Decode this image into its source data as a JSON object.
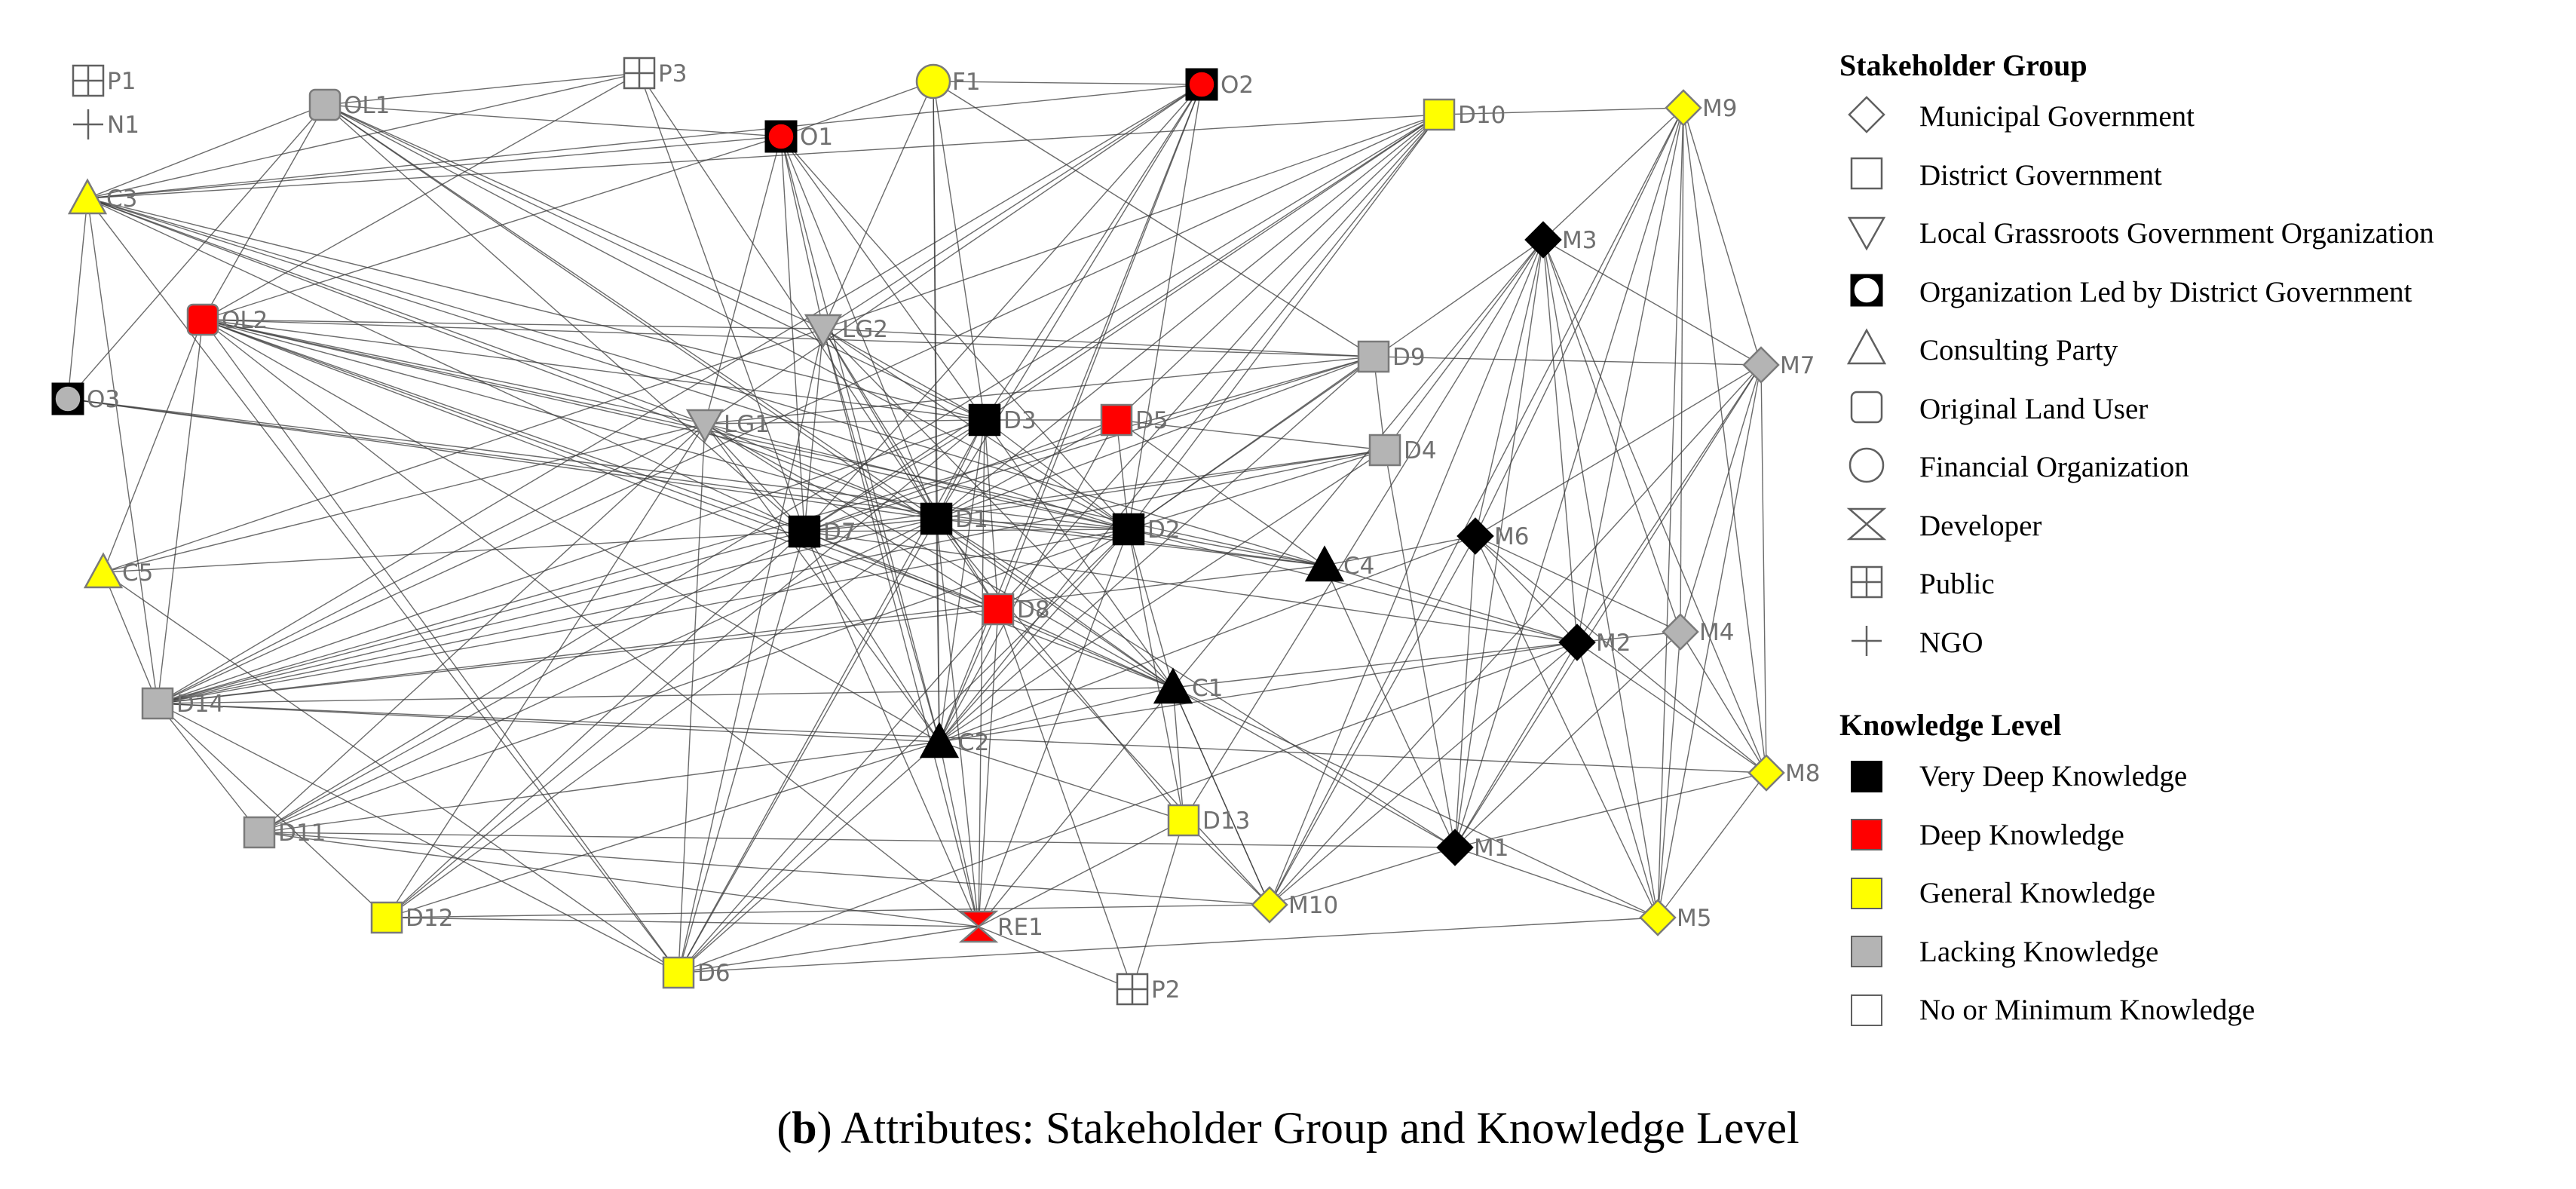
{
  "diagram": {
    "nodes": [
      {
        "id": "P1",
        "shape": "public",
        "knowledge": "none"
      },
      {
        "id": "N1",
        "shape": "ngo",
        "knowledge": "none"
      },
      {
        "id": "OL1",
        "shape": "original",
        "knowledge": "lacking"
      },
      {
        "id": "P3",
        "shape": "public",
        "knowledge": "none"
      },
      {
        "id": "F1",
        "shape": "financial",
        "knowledge": "general"
      },
      {
        "id": "O2",
        "shape": "org",
        "knowledge": "deep"
      },
      {
        "id": "D10",
        "shape": "district",
        "knowledge": "general"
      },
      {
        "id": "M9",
        "shape": "municipal",
        "knowledge": "general"
      },
      {
        "id": "O1",
        "shape": "org",
        "knowledge": "deep"
      },
      {
        "id": "C3",
        "shape": "consulting",
        "knowledge": "general"
      },
      {
        "id": "M3",
        "shape": "municipal",
        "knowledge": "very_deep"
      },
      {
        "id": "OL2",
        "shape": "original",
        "knowledge": "deep"
      },
      {
        "id": "LG2",
        "shape": "grassroots",
        "knowledge": "lacking"
      },
      {
        "id": "D9",
        "shape": "district",
        "knowledge": "lacking"
      },
      {
        "id": "M7",
        "shape": "municipal",
        "knowledge": "lacking"
      },
      {
        "id": "O3",
        "shape": "org",
        "knowledge": "lacking"
      },
      {
        "id": "LG1",
        "shape": "grassroots",
        "knowledge": "lacking"
      },
      {
        "id": "D3",
        "shape": "district",
        "knowledge": "very_deep"
      },
      {
        "id": "D5",
        "shape": "district",
        "knowledge": "deep"
      },
      {
        "id": "D4",
        "shape": "district",
        "knowledge": "lacking"
      },
      {
        "id": "D7",
        "shape": "district",
        "knowledge": "very_deep"
      },
      {
        "id": "D1",
        "shape": "district",
        "knowledge": "very_deep"
      },
      {
        "id": "D2",
        "shape": "district",
        "knowledge": "very_deep"
      },
      {
        "id": "M6",
        "shape": "municipal",
        "knowledge": "very_deep"
      },
      {
        "id": "C4",
        "shape": "consulting",
        "knowledge": "very_deep"
      },
      {
        "id": "C5",
        "shape": "consulting",
        "knowledge": "general"
      },
      {
        "id": "D8",
        "shape": "district",
        "knowledge": "deep"
      },
      {
        "id": "M2",
        "shape": "municipal",
        "knowledge": "very_deep"
      },
      {
        "id": "M4",
        "shape": "municipal",
        "knowledge": "lacking"
      },
      {
        "id": "D14",
        "shape": "district",
        "knowledge": "lacking"
      },
      {
        "id": "C1",
        "shape": "consulting",
        "knowledge": "very_deep"
      },
      {
        "id": "C2",
        "shape": "consulting",
        "knowledge": "very_deep"
      },
      {
        "id": "M8",
        "shape": "municipal",
        "knowledge": "general"
      },
      {
        "id": "D13",
        "shape": "district",
        "knowledge": "general"
      },
      {
        "id": "D11",
        "shape": "district",
        "knowledge": "lacking"
      },
      {
        "id": "M1",
        "shape": "municipal",
        "knowledge": "very_deep"
      },
      {
        "id": "M10",
        "shape": "municipal",
        "knowledge": "general"
      },
      {
        "id": "D12",
        "shape": "district",
        "knowledge": "general"
      },
      {
        "id": "RE1",
        "shape": "developer",
        "knowledge": "deep"
      },
      {
        "id": "M5",
        "shape": "municipal",
        "knowledge": "general"
      },
      {
        "id": "D6",
        "shape": "district",
        "knowledge": "general"
      },
      {
        "id": "P2",
        "shape": "public",
        "knowledge": "none"
      }
    ],
    "edges": [
      [
        "OL1",
        "O1"
      ],
      [
        "OL1",
        "P3"
      ],
      [
        "OL1",
        "D1"
      ],
      [
        "OL1",
        "D3"
      ],
      [
        "OL1",
        "D7"
      ],
      [
        "OL1",
        "D2"
      ],
      [
        "OL1",
        "LG2"
      ],
      [
        "OL1",
        "C3"
      ],
      [
        "OL1",
        "OL2"
      ],
      [
        "OL1",
        "C1"
      ],
      [
        "P3",
        "C3"
      ],
      [
        "P3",
        "D1"
      ],
      [
        "P3",
        "D7"
      ],
      [
        "P3",
        "OL2"
      ],
      [
        "O1",
        "C3"
      ],
      [
        "O1",
        "D3"
      ],
      [
        "O1",
        "D7"
      ],
      [
        "O1",
        "D1"
      ],
      [
        "O1",
        "LG1"
      ],
      [
        "O1",
        "LG2"
      ],
      [
        "O1",
        "D2"
      ],
      [
        "O1",
        "C2"
      ],
      [
        "O1",
        "OL2"
      ],
      [
        "F1",
        "O1"
      ],
      [
        "F1",
        "O2"
      ],
      [
        "F1",
        "D1"
      ],
      [
        "F1",
        "C2"
      ],
      [
        "F1",
        "D3"
      ],
      [
        "F1",
        "LG2"
      ],
      [
        "F1",
        "D9"
      ],
      [
        "O2",
        "LG2"
      ],
      [
        "O2",
        "D7"
      ],
      [
        "O2",
        "D1"
      ],
      [
        "O2",
        "D3"
      ],
      [
        "O2",
        "C2"
      ],
      [
        "O2",
        "LG1"
      ],
      [
        "O2",
        "D2"
      ],
      [
        "O2",
        "C3"
      ],
      [
        "O2",
        "D14"
      ],
      [
        "O2",
        "D8"
      ],
      [
        "D10",
        "M9"
      ],
      [
        "D10",
        "D3"
      ],
      [
        "D10",
        "D7"
      ],
      [
        "D10",
        "D1"
      ],
      [
        "D10",
        "LG2"
      ],
      [
        "D10",
        "C2"
      ],
      [
        "D10",
        "D14"
      ],
      [
        "D10",
        "D8"
      ],
      [
        "D10",
        "D5"
      ],
      [
        "D10",
        "D2"
      ],
      [
        "D10",
        "C3"
      ],
      [
        "D10",
        "D11"
      ],
      [
        "M9",
        "M3"
      ],
      [
        "M9",
        "M7"
      ],
      [
        "M9",
        "M2"
      ],
      [
        "M9",
        "M1"
      ],
      [
        "M9",
        "M4"
      ],
      [
        "M9",
        "M8"
      ],
      [
        "M9",
        "M6"
      ],
      [
        "M9",
        "M10"
      ],
      [
        "M9",
        "M5"
      ],
      [
        "M3",
        "M7"
      ],
      [
        "M3",
        "M2"
      ],
      [
        "M3",
        "M1"
      ],
      [
        "M3",
        "M4"
      ],
      [
        "M3",
        "M8"
      ],
      [
        "M3",
        "M6"
      ],
      [
        "M3",
        "D2"
      ],
      [
        "M3",
        "C1"
      ],
      [
        "M3",
        "M10"
      ],
      [
        "M3",
        "M5"
      ],
      [
        "M3",
        "D4"
      ],
      [
        "M3",
        "D13"
      ],
      [
        "M7",
        "M2"
      ],
      [
        "M7",
        "M1"
      ],
      [
        "M7",
        "M4"
      ],
      [
        "M7",
        "M8"
      ],
      [
        "M7",
        "M6"
      ],
      [
        "M7",
        "M10"
      ],
      [
        "M7",
        "M5"
      ],
      [
        "M7",
        "D9"
      ],
      [
        "C3",
        "O3"
      ],
      [
        "C3",
        "D3"
      ],
      [
        "C3",
        "D7"
      ],
      [
        "C3",
        "D1"
      ],
      [
        "C3",
        "D2"
      ],
      [
        "C3",
        "C4"
      ],
      [
        "C3",
        "LG1"
      ],
      [
        "OL2",
        "D1"
      ],
      [
        "OL2",
        "D3"
      ],
      [
        "OL2",
        "D2"
      ],
      [
        "OL2",
        "D7"
      ],
      [
        "OL2",
        "LG1"
      ],
      [
        "OL2",
        "LG2"
      ],
      [
        "OL2",
        "D8"
      ],
      [
        "OL2",
        "C1"
      ],
      [
        "OL2",
        "C2"
      ],
      [
        "OL2",
        "D14"
      ],
      [
        "OL2",
        "C5"
      ],
      [
        "OL2",
        "D6"
      ],
      [
        "OL2",
        "C4"
      ],
      [
        "OL2",
        "RE1"
      ],
      [
        "OL2",
        "D9"
      ],
      [
        "O3",
        "OL1"
      ],
      [
        "O3",
        "D1"
      ],
      [
        "O3",
        "D2"
      ],
      [
        "O3",
        "C4"
      ],
      [
        "LG2",
        "D3"
      ],
      [
        "LG2",
        "D7"
      ],
      [
        "LG2",
        "D1"
      ],
      [
        "LG2",
        "D2"
      ],
      [
        "LG2",
        "D8"
      ],
      [
        "LG2",
        "C2"
      ],
      [
        "LG2",
        "C1"
      ],
      [
        "LG2",
        "D6"
      ],
      [
        "LG2",
        "D9"
      ],
      [
        "LG2",
        "C5"
      ],
      [
        "LG2",
        "RE1"
      ],
      [
        "LG1",
        "D3"
      ],
      [
        "LG1",
        "D7"
      ],
      [
        "LG1",
        "D1"
      ],
      [
        "LG1",
        "D2"
      ],
      [
        "LG1",
        "D8"
      ],
      [
        "LG1",
        "C2"
      ],
      [
        "LG1",
        "D6"
      ],
      [
        "LG1",
        "D12"
      ],
      [
        "LG1",
        "D14"
      ],
      [
        "LG1",
        "C5"
      ],
      [
        "LG1",
        "D9"
      ],
      [
        "LG1",
        "D11"
      ],
      [
        "LG1",
        "C1"
      ],
      [
        "D3",
        "D7"
      ],
      [
        "D3",
        "D1"
      ],
      [
        "D3",
        "D2"
      ],
      [
        "D3",
        "D5"
      ],
      [
        "D3",
        "D8"
      ],
      [
        "D3",
        "C2"
      ],
      [
        "D3",
        "C1"
      ],
      [
        "D3",
        "D14"
      ],
      [
        "D3",
        "D6"
      ],
      [
        "D3",
        "RE1"
      ],
      [
        "D3",
        "D12"
      ],
      [
        "D5",
        "D1"
      ],
      [
        "D5",
        "D2"
      ],
      [
        "D5",
        "D7"
      ],
      [
        "D5",
        "C2"
      ],
      [
        "D5",
        "D4"
      ],
      [
        "D5",
        "C4"
      ],
      [
        "D9",
        "D7"
      ],
      [
        "D9",
        "D1"
      ],
      [
        "D9",
        "D2"
      ],
      [
        "D9",
        "C2"
      ],
      [
        "D9",
        "D4"
      ],
      [
        "D9",
        "D14"
      ],
      [
        "D4",
        "D7"
      ],
      [
        "D4",
        "D1"
      ],
      [
        "D4",
        "D2"
      ],
      [
        "D4",
        "C2"
      ],
      [
        "D4",
        "M1"
      ],
      [
        "D4",
        "D14"
      ],
      [
        "D7",
        "D1"
      ],
      [
        "D7",
        "D2"
      ],
      [
        "D7",
        "D8"
      ],
      [
        "D7",
        "C1"
      ],
      [
        "D7",
        "C2"
      ],
      [
        "D7",
        "D14"
      ],
      [
        "D7",
        "D11"
      ],
      [
        "D7",
        "D6"
      ],
      [
        "D7",
        "RE1"
      ],
      [
        "D7",
        "D12"
      ],
      [
        "D7",
        "C5"
      ],
      [
        "D7",
        "M2"
      ],
      [
        "D1",
        "D2"
      ],
      [
        "D1",
        "D8"
      ],
      [
        "D1",
        "C1"
      ],
      [
        "D1",
        "C2"
      ],
      [
        "D1",
        "C4"
      ],
      [
        "D1",
        "D14"
      ],
      [
        "D1",
        "D11"
      ],
      [
        "D1",
        "D6"
      ],
      [
        "D1",
        "RE1"
      ],
      [
        "D1",
        "D13"
      ],
      [
        "D1",
        "D12"
      ],
      [
        "D1",
        "M1"
      ],
      [
        "D2",
        "C4"
      ],
      [
        "D2",
        "C1"
      ],
      [
        "D2",
        "C2"
      ],
      [
        "D2",
        "D8"
      ],
      [
        "D2",
        "D14"
      ],
      [
        "D2",
        "D6"
      ],
      [
        "D2",
        "RE1"
      ],
      [
        "D2",
        "D13"
      ],
      [
        "D2",
        "M2"
      ],
      [
        "D2",
        "D11"
      ],
      [
        "C4",
        "M2"
      ],
      [
        "C4",
        "M6"
      ],
      [
        "C4",
        "D14"
      ],
      [
        "C4",
        "M1"
      ],
      [
        "D8",
        "C2"
      ],
      [
        "D8",
        "C1"
      ],
      [
        "D8",
        "RE1"
      ],
      [
        "D8",
        "D14"
      ],
      [
        "D8",
        "D6"
      ],
      [
        "M6",
        "M2"
      ],
      [
        "M6",
        "M1"
      ],
      [
        "M6",
        "M4"
      ],
      [
        "M6",
        "M8"
      ],
      [
        "M6",
        "C2"
      ],
      [
        "M6",
        "M10"
      ],
      [
        "M6",
        "M5"
      ],
      [
        "M2",
        "M1"
      ],
      [
        "M2",
        "M4"
      ],
      [
        "M2",
        "M8"
      ],
      [
        "M2",
        "C1"
      ],
      [
        "M2",
        "M10"
      ],
      [
        "M2",
        "M5"
      ],
      [
        "M2",
        "D6"
      ],
      [
        "M4",
        "M1"
      ],
      [
        "M4",
        "M8"
      ],
      [
        "M4",
        "M5"
      ],
      [
        "C1",
        "C2"
      ],
      [
        "C1",
        "D13"
      ],
      [
        "C1",
        "M1"
      ],
      [
        "C1",
        "D14"
      ],
      [
        "C1",
        "RE1"
      ],
      [
        "C1",
        "M10"
      ],
      [
        "C2",
        "D14"
      ],
      [
        "C2",
        "RE1"
      ],
      [
        "C2",
        "D11"
      ],
      [
        "C2",
        "D6"
      ],
      [
        "C2",
        "D12"
      ],
      [
        "C2",
        "D13"
      ],
      [
        "C2",
        "M2"
      ],
      [
        "M8",
        "M1"
      ],
      [
        "M8",
        "M5"
      ],
      [
        "M8",
        "D14"
      ],
      [
        "D13",
        "M10"
      ],
      [
        "D13",
        "RE1"
      ],
      [
        "D13",
        "P2"
      ],
      [
        "D11",
        "M10"
      ],
      [
        "D11",
        "D14"
      ],
      [
        "D11",
        "RE1"
      ],
      [
        "M1",
        "M10"
      ],
      [
        "M1",
        "M5"
      ],
      [
        "M1",
        "D11"
      ],
      [
        "M10",
        "D12"
      ],
      [
        "M10",
        "C1"
      ],
      [
        "M10",
        "D8"
      ],
      [
        "D12",
        "RE1"
      ],
      [
        "D12",
        "D14"
      ],
      [
        "RE1",
        "D6"
      ],
      [
        "RE1",
        "P2"
      ],
      [
        "M5",
        "D6"
      ],
      [
        "M5",
        "C1"
      ],
      [
        "D6",
        "C5"
      ],
      [
        "D6",
        "D14"
      ],
      [
        "D6",
        "C3"
      ],
      [
        "P2",
        "D8"
      ],
      [
        "C5",
        "D14"
      ],
      [
        "D14",
        "C3"
      ]
    ]
  },
  "legend": {
    "group_title": "Stakeholder Group",
    "groups": [
      {
        "key": "municipal",
        "label": "Municipal Government",
        "icon": "diamond-icon"
      },
      {
        "key": "district",
        "label": "District Government",
        "icon": "square-icon"
      },
      {
        "key": "grassroots",
        "label": "Local Grassroots Government Organization",
        "icon": "down-triangle-icon"
      },
      {
        "key": "org",
        "label": "Organization Led by District Government",
        "icon": "boxed-circle-icon"
      },
      {
        "key": "consulting",
        "label": "Consulting Party",
        "icon": "up-triangle-icon"
      },
      {
        "key": "original",
        "label": "Original Land User",
        "icon": "rounded-square-icon"
      },
      {
        "key": "financial",
        "label": "Financial Organization",
        "icon": "circle-icon"
      },
      {
        "key": "developer",
        "label": "Developer",
        "icon": "hourglass-icon"
      },
      {
        "key": "public",
        "label": "Public",
        "icon": "boxed-cross-icon"
      },
      {
        "key": "ngo",
        "label": "NGO",
        "icon": "plus-icon"
      }
    ],
    "knowledge_title": "Knowledge Level",
    "knowledge": [
      {
        "key": "very_deep",
        "label": "Very Deep Knowledge",
        "color": "#000000"
      },
      {
        "key": "deep",
        "label": "Deep Knowledge",
        "color": "#ff0000"
      },
      {
        "key": "general",
        "label": "General Knowledge",
        "color": "#ffff00"
      },
      {
        "key": "lacking",
        "label": "Lacking Knowledge",
        "color": "#b4b4b4"
      },
      {
        "key": "none",
        "label": "No or Minimum Knowledge",
        "color": "#ffffff"
      }
    ]
  },
  "caption": {
    "letter": "b",
    "text": "Attributes: Stakeholder Group and Knowledge Level"
  }
}
